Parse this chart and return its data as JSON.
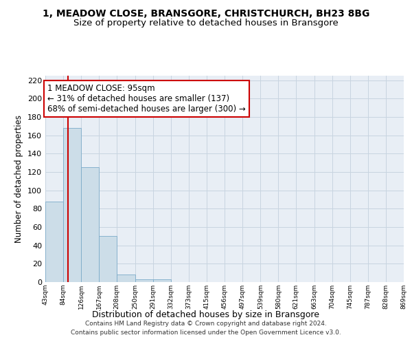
{
  "title": "1, MEADOW CLOSE, BRANSGORE, CHRISTCHURCH, BH23 8BG",
  "subtitle": "Size of property relative to detached houses in Bransgore",
  "xlabel": "Distribution of detached houses by size in Bransgore",
  "ylabel": "Number of detached properties",
  "footer_line1": "Contains HM Land Registry data © Crown copyright and database right 2024.",
  "footer_line2": "Contains public sector information licensed under the Open Government Licence v3.0.",
  "bin_edges": [
    43,
    84,
    126,
    167,
    208,
    250,
    291,
    332,
    373,
    415,
    456,
    497,
    539,
    580,
    621,
    663,
    704,
    745,
    787,
    828,
    869
  ],
  "bin_labels": [
    "43sqm",
    "84sqm",
    "126sqm",
    "167sqm",
    "208sqm",
    "250sqm",
    "291sqm",
    "332sqm",
    "373sqm",
    "415sqm",
    "456sqm",
    "497sqm",
    "539sqm",
    "580sqm",
    "621sqm",
    "663sqm",
    "704sqm",
    "745sqm",
    "787sqm",
    "828sqm",
    "869sqm"
  ],
  "bar_heights": [
    88,
    168,
    125,
    50,
    8,
    3,
    3,
    0,
    0,
    0,
    0,
    0,
    0,
    0,
    0,
    0,
    0,
    0,
    0,
    0
  ],
  "bar_color": "#ccdde8",
  "bar_edge_color": "#7aaac8",
  "ylim": [
    0,
    225
  ],
  "yticks": [
    0,
    20,
    40,
    60,
    80,
    100,
    120,
    140,
    160,
    180,
    200,
    220
  ],
  "property_size": 95,
  "red_line_color": "#cc0000",
  "annotation_line1": "1 MEADOW CLOSE: 95sqm",
  "annotation_line2": "← 31% of detached houses are smaller (137)",
  "annotation_line3": "68% of semi-detached houses are larger (300) →",
  "annotation_box_color": "#ffffff",
  "annotation_box_edge_color": "#cc0000",
  "grid_color": "#c8d4e0",
  "background_color": "#e8eef5",
  "title_fontsize": 10,
  "subtitle_fontsize": 9.5,
  "annotation_fontsize": 8.5
}
